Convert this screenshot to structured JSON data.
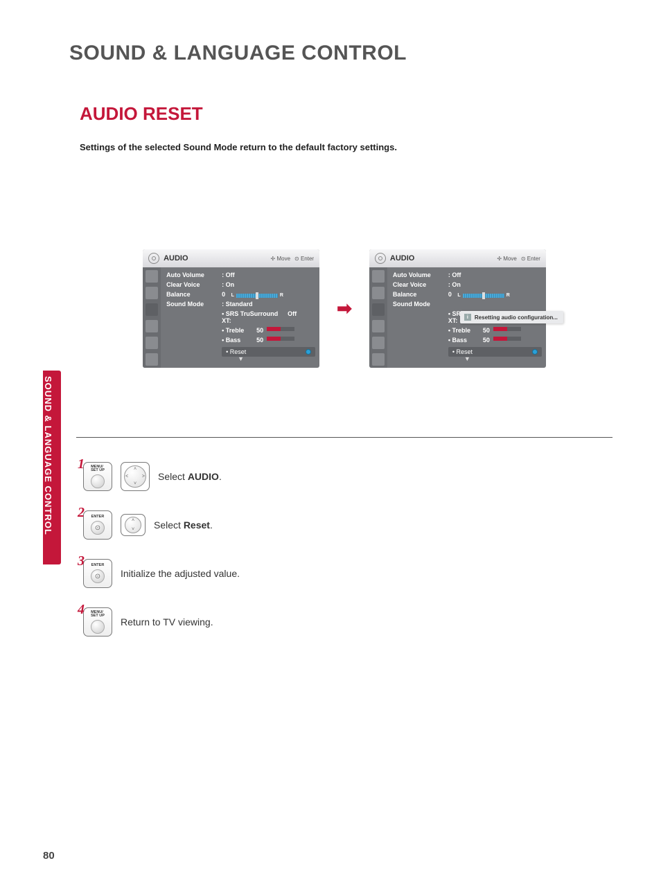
{
  "page": {
    "main_title": "SOUND & LANGUAGE CONTROL",
    "section_title": "AUDIO RESET",
    "description": "Settings of the selected Sound Mode return to the default factory settings.",
    "side_tab": "SOUND & LANGUAGE CONTROL",
    "page_number": "80"
  },
  "menu": {
    "header_title": "AUDIO",
    "hint_move": "Move",
    "hint_enter": "Enter",
    "items": {
      "auto_volume_label": "Auto Volume",
      "auto_volume_value": ": Off",
      "clear_voice_label": "Clear Voice",
      "clear_voice_value": ": On",
      "balance_label": "Balance",
      "balance_value": "0",
      "sound_mode_label": "Sound Mode",
      "sound_mode_value": ": Standard",
      "srs_label": "• SRS TruSurround XT:",
      "srs_value": "Off",
      "treble_label": "• Treble",
      "treble_value": "50",
      "bass_label": "• Bass",
      "bass_value": "50",
      "reset_label": "• Reset"
    },
    "popup_text": "Resetting audio configuration..."
  },
  "steps": {
    "s1_num": "1",
    "s1_btn": "MENU/\nSET UP",
    "s1_prefix": "Select ",
    "s1_bold": "AUDIO",
    "s1_suffix": ".",
    "s2_num": "2",
    "s2_btn": "ENTER",
    "s2_prefix": "Select ",
    "s2_bold": "Reset",
    "s2_suffix": ".",
    "s3_num": "3",
    "s3_btn": "ENTER",
    "s3_text": "Initialize the adjusted value.",
    "s4_num": "4",
    "s4_btn": "MENU/\nSET UP",
    "s4_text": "Return to TV viewing."
  },
  "colors": {
    "accent": "#C4173A",
    "panel_bg": "#74767a",
    "panel_row_hl": "#5e6064"
  }
}
